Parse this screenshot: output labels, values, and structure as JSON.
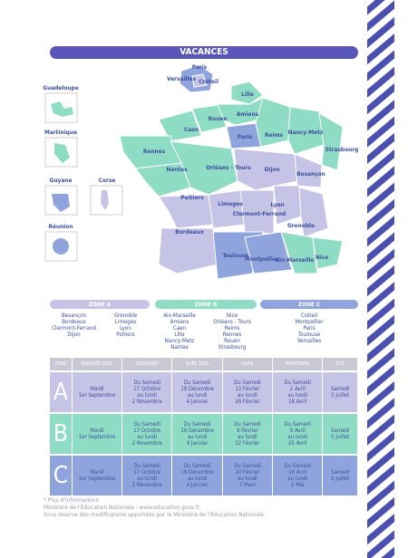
{
  "header": {
    "title": "VACANCES"
  },
  "map": {
    "inset": [
      "Paris",
      "Versailles",
      "Créteil"
    ],
    "overseas": [
      "Guadeloupe",
      "Martinique",
      "Guyane",
      "Corse",
      "Réunion"
    ],
    "regions": [
      "Lille",
      "Amiens",
      "Rouen",
      "Caen",
      "Paris",
      "Reims",
      "Nancy-Metz",
      "Strasbourg",
      "Rennes",
      "Nantes",
      "Orléans - Tours",
      "Dijon",
      "Besançon",
      "Poitiers",
      "Limoges",
      "Clermont-Ferrand",
      "Lyon",
      "Grenoble",
      "Bordeaux",
      "Toulouse",
      "Montpellier",
      "Aix-Marseille",
      "Nice"
    ]
  },
  "zones": [
    {
      "name": "ZONE A",
      "cities": [
        "Besançon",
        "Bordeaux",
        "Clermont-Ferrand",
        "Dijon",
        "Grenoble",
        "Limoges",
        "Lyon",
        "Poitiers"
      ]
    },
    {
      "name": "ZONE B",
      "cities": [
        "Aix-Marseille",
        "Amiens",
        "Caen",
        "Lille",
        "Nancy-Metz",
        "Nantes",
        "Nice",
        "Orléans - Tours",
        "Reims",
        "Rennes",
        "Rouen",
        "Strasbourg"
      ]
    },
    {
      "name": "ZONE C",
      "cities": [
        "Créteil",
        "Montpellier",
        "Paris",
        "Toulouse",
        "Versailles"
      ]
    }
  ],
  "table": {
    "headers": [
      "ZONE",
      "RENTRÉE 2015",
      "TOUSSAINT",
      "NOËL 2015",
      "HIVER",
      "PRINTEMPS",
      "ÉTÉ"
    ],
    "rows": [
      [
        "A",
        "Mardi\n1er Septembre",
        "Du Samedi\n17 Octobre\nau lundi\n2 Novembre",
        "Du Samedi\n19 Décembre\nau lundi\n4 Janvier",
        "Du Samedi\n13 Février\nau lundi\n29 Février",
        "Du Samedi\n2 Avril\nau lundi\n18 Avril",
        "Samedi\n5 Juillet"
      ],
      [
        "B",
        "Mardi\n1er Septembre",
        "Du Samedi\n17 Octobre\nau lundi\n2 Novembre",
        "Du Samedi\n19 Décembre\nau lundi\n4 Janvier",
        "Du Samedi\n6 Février\nau lundi\n22 Février",
        "Du Samedi\n9 Avril\nau lundi\n25 Avril",
        "Samedi\n5 Juillet"
      ],
      [
        "C",
        "Mardi\n1er Septembre",
        "Du Samedi\n17 Octobre\nau lundi\n2 Novembre",
        "Du Samedi\n19 Décembre\nau lundi\n4 Janvier",
        "Du Samedi\n20 Février\nau lundi\n7 Mars",
        "Du Samedi\n16 Avril\nau lundi\n2 Mai",
        "Samedi\n5 Juillet"
      ]
    ]
  },
  "footer": [
    "* Plus d'informations",
    "Ministère de l'Éducation Nationale : www.education.gouv.fr",
    "Sous réserve des modifications apportées par le Ministère de l'Éducation Nationale"
  ]
}
